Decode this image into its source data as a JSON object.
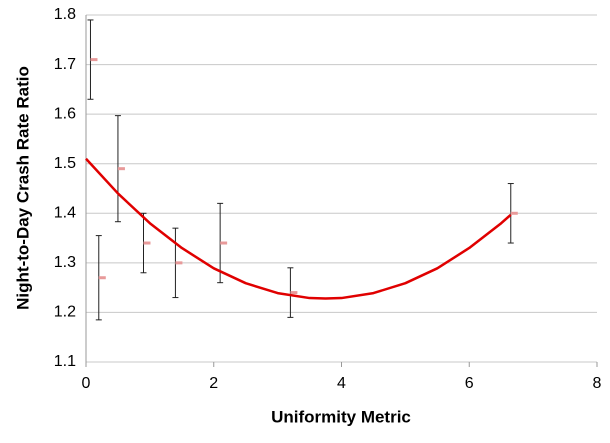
{
  "chart_data": {
    "type": "scatter",
    "x_label": "Uniformity Metric",
    "y_label": "Night-to-Day Crash Rate Ratio",
    "xlim": [
      0,
      8
    ],
    "xticks": [
      0,
      2,
      4,
      6,
      8
    ],
    "ylim": [
      1.1,
      1.8
    ],
    "yticks": [
      1.1,
      1.2,
      1.3,
      1.4,
      1.5,
      1.6,
      1.7,
      1.8
    ],
    "grid": true,
    "series": [
      {
        "color": "#e89a9a",
        "error_color": "#222222",
        "x": [
          0.07,
          0.2,
          0.5,
          0.9,
          1.4,
          2.1,
          3.2,
          6.65
        ],
        "values": [
          1.71,
          1.27,
          1.49,
          1.34,
          1.3,
          1.34,
          1.24,
          1.4
        ],
        "errors": [
          0.08,
          0.085,
          0.107,
          0.06,
          0.07,
          0.08,
          0.05,
          0.06
        ]
      }
    ],
    "trendline": {
      "color": "#e00000",
      "x": [
        0,
        0.5,
        1,
        1.5,
        2,
        2.5,
        3,
        3.5,
        3.75,
        4,
        4.5,
        5,
        5.5,
        6,
        6.5,
        6.65
      ],
      "values": [
        1.51,
        1.44,
        1.38,
        1.33,
        1.289,
        1.259,
        1.239,
        1.229,
        1.228,
        1.229,
        1.239,
        1.259,
        1.289,
        1.33,
        1.38,
        1.397
      ]
    }
  }
}
